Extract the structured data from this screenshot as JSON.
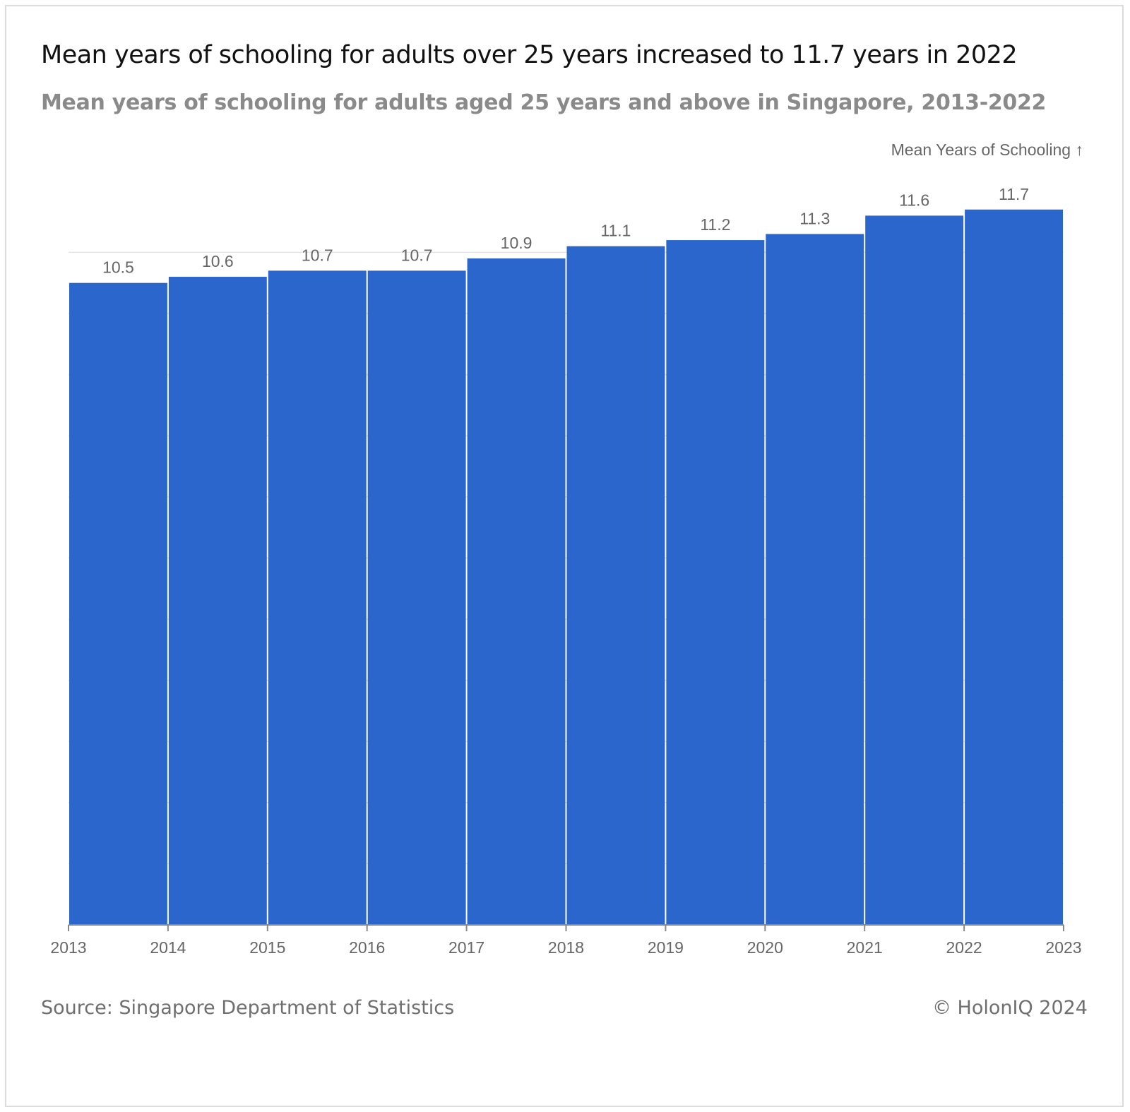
{
  "header": {
    "title": "Mean years of schooling for adults over 25 years increased to 11.7 years in 2022",
    "subtitle": "Mean years of schooling for adults aged 25 years and above in Singapore, 2013-2022"
  },
  "footer": {
    "source": "Source: Singapore Department of Statistics",
    "credit": "© HolonIQ 2024"
  },
  "colors": {
    "bar": "#2a66cc",
    "gridline": "#e3e3e3",
    "axis": "#888888",
    "label": "#666666"
  },
  "chart_data": {
    "type": "bar",
    "title": "Mean years of schooling for adults over 25 years increased to 11.7 years in 2022",
    "subtitle": "Mean years of schooling for adults aged 25 years and above in Singapore, 2013-2022",
    "ylabel": "Mean Years of Schooling ↑",
    "xlabel": "",
    "x_ticks": [
      "2013",
      "2014",
      "2015",
      "2016",
      "2017",
      "2018",
      "2019",
      "2020",
      "2021",
      "2022",
      "2023"
    ],
    "categories": [
      "2013",
      "2014",
      "2015",
      "2016",
      "2017",
      "2018",
      "2019",
      "2020",
      "2021",
      "2022"
    ],
    "values": [
      10.5,
      10.6,
      10.7,
      10.7,
      10.9,
      11.1,
      11.2,
      11.3,
      11.6,
      11.7
    ],
    "data_labels": [
      "10.5",
      "10.6",
      "10.7",
      "10.7",
      "10.9",
      "11.1",
      "11.2",
      "11.3",
      "11.6",
      "11.7"
    ],
    "xlim": [
      2013,
      2023
    ],
    "ylim": [
      0,
      11
    ],
    "y_gridlines": [
      1,
      2,
      3,
      4,
      5,
      6,
      7,
      8,
      9,
      10,
      11
    ],
    "grid": true,
    "legend": "none"
  }
}
